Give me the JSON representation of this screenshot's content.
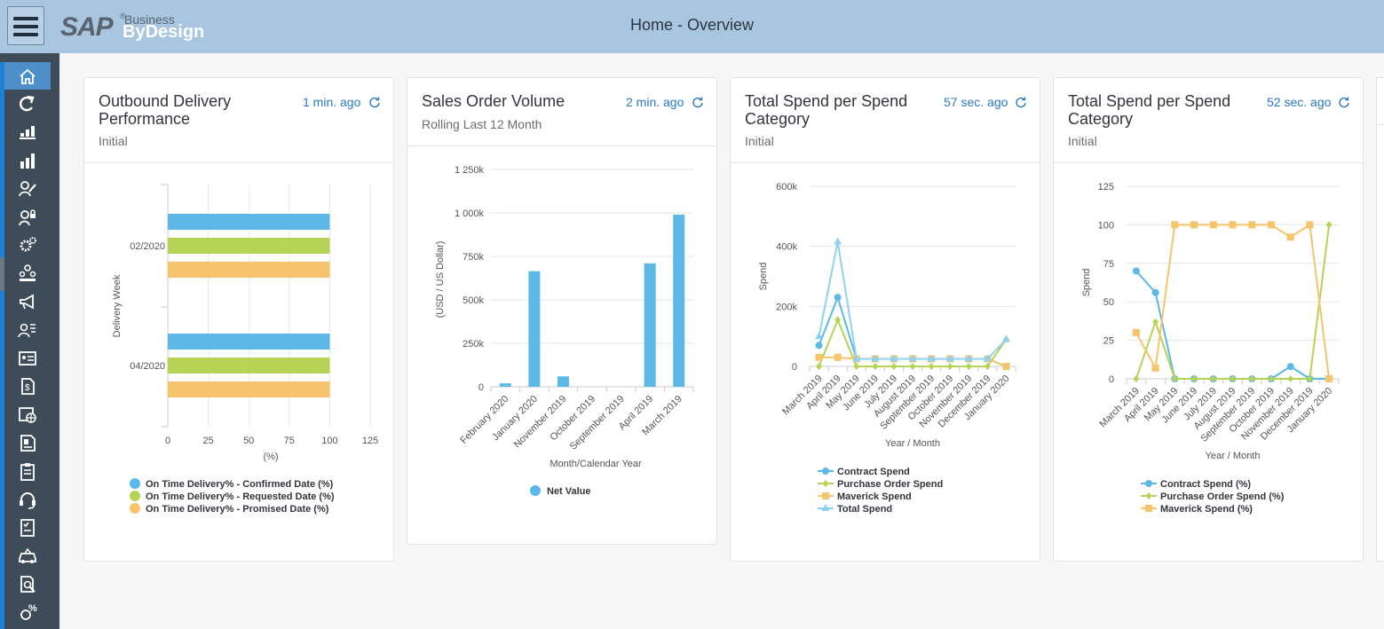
{
  "header": {
    "title": "Home - Overview",
    "logo": {
      "sap": "SAP",
      "registered": "®",
      "business": "Business",
      "bydesign": "ByDesign"
    }
  },
  "colors": {
    "topbar": "#a9c6e0",
    "sidebar": "#3e4c5a",
    "accent": "#1a82d8",
    "blue": "#5cb8e6",
    "green": "#b5d456",
    "orange": "#f7c46c",
    "lightblue": "#8fd1f0"
  },
  "sidebar": {
    "items": [
      {
        "icon": "home-icon",
        "active": true
      },
      {
        "icon": "redo-icon"
      },
      {
        "icon": "dashboard-icon"
      },
      {
        "icon": "bar-chart-icon"
      },
      {
        "icon": "edit-people-icon"
      },
      {
        "icon": "user-lock-icon"
      },
      {
        "icon": "gears-icon"
      },
      {
        "icon": "group-icon"
      },
      {
        "icon": "megaphone-icon"
      },
      {
        "icon": "user-list-icon"
      },
      {
        "icon": "id-card-icon"
      },
      {
        "icon": "money-doc-icon"
      },
      {
        "icon": "calendar-globe-icon"
      },
      {
        "icon": "invoice-icon"
      },
      {
        "icon": "clipboard-icon"
      },
      {
        "icon": "headset-icon"
      },
      {
        "icon": "checklist-icon"
      },
      {
        "icon": "car-icon"
      },
      {
        "icon": "search-doc-icon"
      },
      {
        "icon": "percent-icon"
      }
    ]
  },
  "cards": [
    {
      "title": "Outbound Delivery Performance",
      "subtitle": "Initial",
      "age": "1 min. ago",
      "chart_data": {
        "type": "bar",
        "orientation": "horizontal",
        "categories": [
          "02/2020",
          "04/2020"
        ],
        "series": [
          {
            "name": "On Time Delivery% - Confirmed Date (%)",
            "values": [
              100,
              100
            ]
          },
          {
            "name": "On Time Delivery% - Requested Date (%)",
            "values": [
              100,
              100
            ]
          },
          {
            "name": "On Time Delivery% - Promised Date (%)",
            "values": [
              100,
              100
            ]
          }
        ],
        "xticks": [
          "0",
          "25",
          "50",
          "75",
          "100",
          "125"
        ],
        "xlabel": "(%)",
        "ylabel": "Delivery Week",
        "xlim": [
          0,
          125
        ],
        "legend": "bottom"
      }
    },
    {
      "title": "Sales Order Volume",
      "subtitle": "Rolling Last 12 Month",
      "age": "2 min. ago",
      "chart_data": {
        "type": "bar",
        "categories": [
          "February 2020",
          "January 2020",
          "November 2019",
          "October 2019",
          "September 2019",
          "April 2019",
          "March 2019"
        ],
        "series": [
          {
            "name": "Net Value",
            "values": [
              20000,
              665000,
              60000,
              0,
              0,
              710000,
              990000
            ]
          }
        ],
        "yticks": [
          "0",
          "250k",
          "500k",
          "750k",
          "1 000k",
          "1 250k"
        ],
        "ylim": [
          0,
          1250000
        ],
        "xlabel": "Month/Calendar Year",
        "ylabel": "(USD / US Dollar)",
        "legend": "bottom"
      }
    },
    {
      "title": "Total Spend per Spend Category",
      "subtitle": "Initial",
      "age": "57 sec. ago",
      "chart_data": {
        "type": "line",
        "categories": [
          "March 2019",
          "April 2019",
          "May 2019",
          "June 2019",
          "July 2019",
          "August 2019",
          "September 2019",
          "October 2019",
          "November 2019",
          "December 2019",
          "January 2020"
        ],
        "series": [
          {
            "name": "Contract Spend",
            "values": [
              70000,
              230000,
              25000,
              25000,
              25000,
              25000,
              25000,
              25000,
              25000,
              25000,
              0
            ]
          },
          {
            "name": "Purchase Order Spend",
            "values": [
              0,
              155000,
              0,
              0,
              0,
              0,
              0,
              0,
              0,
              0,
              90000
            ]
          },
          {
            "name": "Maverick Spend",
            "values": [
              30000,
              30000,
              25000,
              25000,
              25000,
              25000,
              25000,
              25000,
              25000,
              25000,
              0
            ]
          },
          {
            "name": "Total Spend",
            "values": [
              100000,
              415000,
              25000,
              25000,
              25000,
              25000,
              25000,
              25000,
              25000,
              25000,
              90000
            ]
          }
        ],
        "yticks": [
          "0",
          "200k",
          "400k",
          "600k"
        ],
        "ylim": [
          0,
          600000
        ],
        "xlabel": "Year / Month",
        "ylabel": "Spend",
        "legend": "bottom"
      }
    },
    {
      "title": "Total Spend per Spend Category",
      "subtitle": "Initial",
      "age": "52 sec. ago",
      "chart_data": {
        "type": "line",
        "categories": [
          "March 2019",
          "April 2019",
          "May 2019",
          "June 2019",
          "July 2019",
          "August 2019",
          "September 2019",
          "October 2019",
          "November 2019",
          "December 2019",
          "January 2020"
        ],
        "series": [
          {
            "name": "Contract Spend (%)",
            "values": [
              70,
              56,
              0,
              0,
              0,
              0,
              0,
              0,
              8,
              0,
              0
            ]
          },
          {
            "name": "Purchase Order Spend (%)",
            "values": [
              0,
              37,
              0,
              0,
              0,
              0,
              0,
              0,
              0,
              0,
              100
            ]
          },
          {
            "name": "Maverick Spend (%)",
            "values": [
              30,
              7,
              100,
              100,
              100,
              100,
              100,
              100,
              92,
              100,
              0
            ]
          }
        ],
        "yticks": [
          "0",
          "25",
          "50",
          "75",
          "100",
          "125"
        ],
        "ylim": [
          0,
          125
        ],
        "xlabel": "Year / Month",
        "ylabel": "Spend",
        "legend": "bottom"
      }
    }
  ]
}
